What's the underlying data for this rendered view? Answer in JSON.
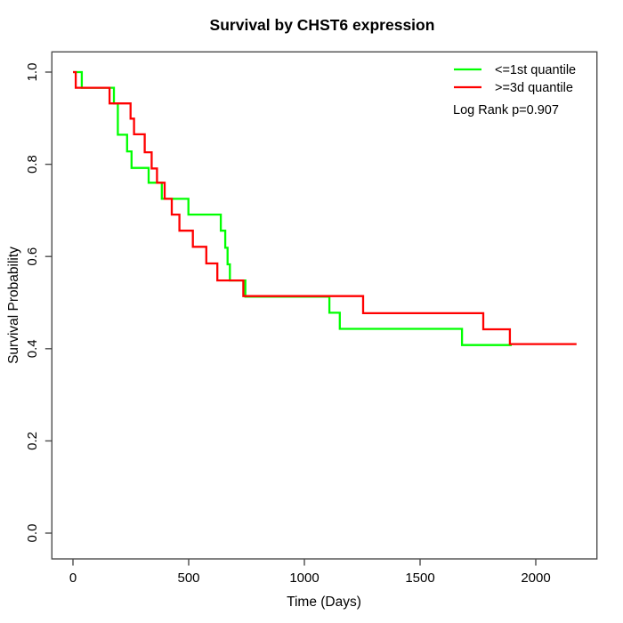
{
  "chart_data": {
    "type": "line",
    "subtype": "kaplan_meier_step",
    "title": "Survival by CHST6 expression",
    "xlabel": "Time (Days)",
    "ylabel": "Survival Probability",
    "x_ticks": [
      0,
      500,
      1000,
      1500,
      2000
    ],
    "y_ticks": [
      0.0,
      0.2,
      0.4,
      0.6,
      0.8,
      1.0
    ],
    "xlim": [
      -91,
      2264
    ],
    "ylim": [
      -0.056,
      1.044
    ],
    "grid": false,
    "legend_position": "top-right",
    "annotation": "Log Rank p=0.907",
    "axis_color": "#4d4d4d",
    "series": [
      {
        "name": "<=1st quantile",
        "color": "#00ff00",
        "points": [
          [
            0,
            1.0
          ],
          [
            38,
            0.966
          ],
          [
            177,
            0.932
          ],
          [
            194,
            0.864
          ],
          [
            234,
            0.828
          ],
          [
            253,
            0.792
          ],
          [
            327,
            0.76
          ],
          [
            384,
            0.725
          ],
          [
            499,
            0.691
          ],
          [
            639,
            0.656
          ],
          [
            658,
            0.619
          ],
          [
            668,
            0.583
          ],
          [
            678,
            0.548
          ],
          [
            745,
            0.513
          ],
          [
            1108,
            0.478
          ],
          [
            1153,
            0.443
          ],
          [
            1681,
            0.408
          ],
          [
            1896,
            0.408
          ]
        ]
      },
      {
        "name": ">=3d quantile",
        "color": "#ff0000",
        "points": [
          [
            0,
            1.0
          ],
          [
            12,
            0.966
          ],
          [
            158,
            0.932
          ],
          [
            249,
            0.899
          ],
          [
            264,
            0.865
          ],
          [
            310,
            0.826
          ],
          [
            340,
            0.791
          ],
          [
            363,
            0.76
          ],
          [
            396,
            0.725
          ],
          [
            427,
            0.691
          ],
          [
            460,
            0.656
          ],
          [
            518,
            0.621
          ],
          [
            576,
            0.585
          ],
          [
            624,
            0.548
          ],
          [
            736,
            0.514
          ],
          [
            1254,
            0.477
          ],
          [
            1773,
            0.442
          ],
          [
            1888,
            0.41
          ],
          [
            2176,
            0.41
          ]
        ]
      }
    ]
  }
}
